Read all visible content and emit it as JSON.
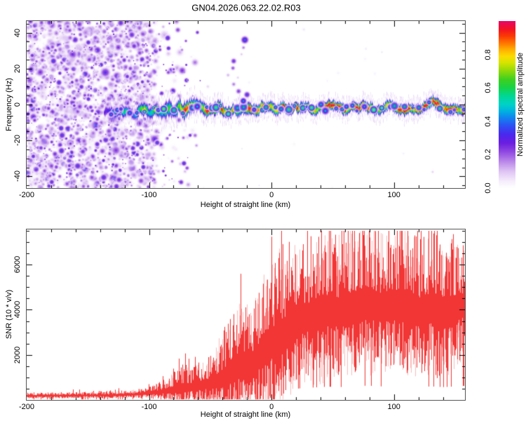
{
  "title": "GN04.2026.063.22.02.R03",
  "chart_data": [
    {
      "type": "heatmap",
      "title": "",
      "xlabel": "Height of straight line (km)",
      "ylabel": "Frequency (Hz)",
      "xlim": [
        -200,
        158
      ],
      "ylim": [
        -46.5,
        46.5
      ],
      "grid": false,
      "xticks": [
        {
          "v": -200,
          "label": "-200"
        },
        {
          "v": -100,
          "label": "-100"
        },
        {
          "v": 0,
          "label": "0"
        },
        {
          "v": 100,
          "label": "100"
        }
      ],
      "xminor_step": 20,
      "yticks": [
        {
          "v": 40,
          "label": "40"
        },
        {
          "v": 20,
          "label": "20"
        },
        {
          "v": 0,
          "label": "0"
        },
        {
          "v": -20,
          "label": "-20"
        },
        {
          "v": -40,
          "label": "-40"
        }
      ],
      "yminor_step": 5,
      "colorbar": {
        "label": "Normalized spectral amplitude",
        "range": [
          0,
          1
        ],
        "ticks": [
          {
            "v": 0.0,
            "label": "0.0"
          },
          {
            "v": 0.2,
            "label": "0.2"
          },
          {
            "v": 0.4,
            "label": "0.4"
          },
          {
            "v": 0.6,
            "label": "0.6"
          },
          {
            "v": 0.8,
            "label": "0.8"
          }
        ],
        "colormap_stops": [
          [
            0.0,
            "#ffffff"
          ],
          [
            0.04,
            "#f6eefc"
          ],
          [
            0.1,
            "#dfc4f4"
          ],
          [
            0.16,
            "#b986ea"
          ],
          [
            0.22,
            "#8f46e2"
          ],
          [
            0.27,
            "#6b1ee0"
          ],
          [
            0.32,
            "#4b28ee"
          ],
          [
            0.37,
            "#2e4ef4"
          ],
          [
            0.42,
            "#1283f0"
          ],
          [
            0.46,
            "#00b2e0"
          ],
          [
            0.5,
            "#00d2c8"
          ],
          [
            0.55,
            "#00d896"
          ],
          [
            0.6,
            "#17d349"
          ],
          [
            0.65,
            "#3fd01f"
          ],
          [
            0.7,
            "#8ed90a"
          ],
          [
            0.75,
            "#d7e400"
          ],
          [
            0.79,
            "#fddb00"
          ],
          [
            0.83,
            "#ffae00"
          ],
          [
            0.87,
            "#ff7300"
          ],
          [
            0.91,
            "#fb3a05"
          ],
          [
            0.95,
            "#f31322"
          ],
          [
            1.0,
            "#e7076b"
          ]
        ]
      },
      "noise_region": {
        "x_start": -200,
        "dense_until": -102,
        "fade_until": -92,
        "sparse_until": -55,
        "samples": 4200,
        "amp_min": 0.07,
        "amp_max": 0.37
      },
      "band_samples": [
        [
          -137,
          -4.0,
          0.32,
          2.2
        ],
        [
          -130,
          -3.2,
          0.48,
          2.2
        ],
        [
          -124,
          -4.5,
          0.5,
          2.3
        ],
        [
          -118,
          -3.0,
          0.55,
          2.4
        ],
        [
          -112,
          -4.8,
          0.58,
          2.4
        ],
        [
          -106,
          -3.2,
          0.62,
          2.5
        ],
        [
          -100,
          -4.0,
          0.68,
          2.5
        ],
        [
          -95,
          -2.5,
          0.72,
          2.7
        ],
        [
          -90,
          -4.5,
          0.76,
          3.0
        ],
        [
          -85,
          -2.0,
          0.8,
          3.3
        ],
        [
          -80,
          -4.0,
          0.82,
          3.3
        ],
        [
          -76,
          -1.5,
          0.85,
          3.1
        ],
        [
          -72,
          -3.8,
          0.86,
          3.0
        ],
        [
          -68,
          -1.8,
          0.85,
          2.8
        ],
        [
          -64,
          -0.5,
          0.87,
          2.7
        ],
        [
          -60,
          0.5,
          0.88,
          2.8
        ],
        [
          -56,
          -1.5,
          0.9,
          2.5
        ],
        [
          -52,
          -3.5,
          0.9,
          2.5
        ],
        [
          -48,
          -2.0,
          0.92,
          2.3
        ],
        [
          -44,
          -1.0,
          0.92,
          2.4
        ],
        [
          -40,
          -2.5,
          0.9,
          2.4
        ],
        [
          -36,
          -4.0,
          0.93,
          2.3
        ],
        [
          -32,
          -2.5,
          0.95,
          2.2
        ],
        [
          -28,
          -3.5,
          0.94,
          2.3
        ],
        [
          -24,
          -2.0,
          0.95,
          2.2
        ],
        [
          -20,
          -3.0,
          0.96,
          2.2
        ],
        [
          -16,
          -4.0,
          0.96,
          2.1
        ],
        [
          -12,
          -2.5,
          0.95,
          2.1
        ],
        [
          -8,
          -1.5,
          0.96,
          2.0
        ],
        [
          -4,
          -2.5,
          0.97,
          2.0
        ],
        [
          0,
          -1.8,
          0.96,
          2.0
        ],
        [
          5,
          -2.5,
          0.97,
          2.0
        ],
        [
          10,
          -1.5,
          0.96,
          2.0
        ],
        [
          15,
          -2.8,
          0.97,
          2.0
        ],
        [
          20,
          -2.0,
          0.97,
          1.9
        ],
        [
          25,
          -3.0,
          0.96,
          2.0
        ],
        [
          30,
          -1.5,
          0.97,
          1.9
        ],
        [
          35,
          -2.5,
          0.97,
          2.0
        ],
        [
          40,
          -1.2,
          0.98,
          2.0
        ],
        [
          45,
          -2.2,
          0.97,
          1.9
        ],
        [
          50,
          -1.0,
          0.97,
          2.0
        ],
        [
          55,
          -2.5,
          0.96,
          1.9
        ],
        [
          60,
          -3.0,
          0.97,
          2.0
        ],
        [
          65,
          -1.5,
          0.97,
          1.9
        ],
        [
          70,
          -2.5,
          0.98,
          2.0
        ],
        [
          75,
          -1.0,
          0.97,
          1.9
        ],
        [
          80,
          -2.0,
          0.97,
          2.0
        ],
        [
          85,
          -3.0,
          0.96,
          2.0
        ],
        [
          90,
          -1.5,
          0.97,
          1.9
        ],
        [
          95,
          -0.5,
          0.98,
          2.0
        ],
        [
          100,
          -2.5,
          0.97,
          1.9
        ],
        [
          105,
          -3.2,
          0.96,
          2.0
        ],
        [
          110,
          -2.0,
          0.97,
          2.0
        ],
        [
          115,
          -1.0,
          0.98,
          1.9
        ],
        [
          120,
          -2.8,
          0.97,
          2.0
        ],
        [
          125,
          -1.5,
          0.97,
          1.9
        ],
        [
          130,
          0.5,
          0.98,
          2.0
        ],
        [
          133,
          2.0,
          0.97,
          2.0
        ],
        [
          136,
          0.0,
          0.97,
          1.9
        ],
        [
          140,
          -2.0,
          0.97,
          1.9
        ],
        [
          145,
          -3.0,
          0.96,
          2.0
        ],
        [
          150,
          -2.0,
          0.97,
          1.9
        ],
        [
          155,
          -2.8,
          0.97,
          2.0
        ],
        [
          158,
          -2.0,
          0.97,
          1.9
        ]
      ],
      "band_bumps": {
        "start_km": -126,
        "spacing_min_km": 2.5,
        "spacing_max_km": 9,
        "amp_min": 0.45,
        "amp_max": 0.75
      },
      "seed_blobs": [
        [
          -128,
          -4.0,
          3.0,
          0.62
        ],
        [
          -126,
          -3.0,
          2.5,
          0.5
        ],
        [
          -131,
          -5.5,
          2.5,
          0.45
        ],
        [
          -123,
          -2.5,
          2.2,
          0.4
        ]
      ],
      "plume_blobs": [
        [
          -21.8,
          36.0,
          3.5,
          0.4
        ],
        [
          -22.9,
          31.7,
          2.0,
          0.2
        ],
        [
          -30.9,
          24.2,
          2.8,
          0.3
        ],
        [
          -31.5,
          20.3,
          2.3,
          0.24
        ],
        [
          -35.5,
          16.4,
          2.0,
          0.16
        ],
        [
          -30.9,
          11.3,
          2.3,
          0.2
        ],
        [
          -26.9,
          7.4,
          2.8,
          0.26
        ],
        [
          -20.0,
          5.5,
          3.0,
          0.34
        ],
        [
          -23.0,
          2.0,
          3.0,
          0.45
        ],
        [
          -24.5,
          28.0,
          1.6,
          0.14
        ],
        [
          -27.5,
          15.0,
          1.6,
          0.13
        ]
      ],
      "scatter_blobs": [
        [
          -62.4,
          -17.2,
          2.5,
          0.22
        ],
        [
          -61.3,
          -22.8,
          2.0,
          0.18
        ],
        [
          -76.0,
          -30.0,
          2.0,
          0.12
        ],
        [
          -52.0,
          10.0,
          2.0,
          0.12
        ]
      ],
      "sprinkle_count": 18
    },
    {
      "type": "line",
      "title": "",
      "xlabel": "Height of straight line (km)",
      "ylabel": "SNR (10 * v/v)",
      "xlim": [
        -200,
        158
      ],
      "ylim": [
        0,
        7560
      ],
      "grid": false,
      "xticks": [
        {
          "v": -200,
          "label": "-200"
        },
        {
          "v": -100,
          "label": "-100"
        },
        {
          "v": 0,
          "label": "0"
        },
        {
          "v": 100,
          "label": "100"
        }
      ],
      "xminor_step": 20,
      "yticks": [
        {
          "v": 2000,
          "label": "2000"
        },
        {
          "v": 4000,
          "label": "4000"
        },
        {
          "v": 6000,
          "label": "6000"
        }
      ],
      "yminor_step": 500,
      "line_color": "#f23535",
      "series": [
        {
          "name": "SNR",
          "envelope_km_mean_spread": [
            [
              -200,
              180,
              120
            ],
            [
              -180,
              185,
              120
            ],
            [
              -160,
              190,
              130
            ],
            [
              -145,
              200,
              140
            ],
            [
              -130,
              210,
              150
            ],
            [
              -120,
              220,
              160
            ],
            [
              -112,
              245,
              185
            ],
            [
              -105,
              275,
              215
            ],
            [
              -100,
              300,
              250
            ],
            [
              -95,
              330,
              300
            ],
            [
              -90,
              360,
              380
            ],
            [
              -85,
              400,
              460
            ],
            [
              -80,
              450,
              620
            ],
            [
              -75,
              500,
              900
            ],
            [
              -70,
              520,
              800
            ],
            [
              -65,
              550,
              720
            ],
            [
              -60,
              610,
              820
            ],
            [
              -55,
              660,
              920
            ],
            [
              -50,
              710,
              1050
            ],
            [
              -45,
              810,
              1350
            ],
            [
              -40,
              920,
              1750
            ],
            [
              -35,
              1100,
              2000
            ],
            [
              -30,
              1300,
              2250
            ],
            [
              -25,
              1500,
              2500
            ],
            [
              -20,
              1500,
              2300
            ],
            [
              -15,
              1620,
              2250
            ],
            [
              -10,
              1900,
              2600
            ],
            [
              -5,
              2200,
              2850
            ],
            [
              0,
              2450,
              3050
            ],
            [
              5,
              2600,
              3250
            ],
            [
              10,
              2850,
              3250
            ],
            [
              15,
              3050,
              3000
            ],
            [
              20,
              3300,
              2850
            ],
            [
              25,
              3500,
              2700
            ],
            [
              30,
              3600,
              2800
            ],
            [
              35,
              3700,
              2950
            ],
            [
              40,
              3800,
              3050
            ],
            [
              45,
              3900,
              2950
            ],
            [
              50,
              3900,
              2800
            ],
            [
              55,
              3800,
              2950
            ],
            [
              60,
              3900,
              3100
            ],
            [
              65,
              4000,
              3050
            ],
            [
              70,
              4100,
              3000
            ],
            [
              75,
              4200,
              3100
            ],
            [
              80,
              4200,
              3250
            ],
            [
              85,
              4100,
              2950
            ],
            [
              90,
              4000,
              2700
            ],
            [
              95,
              4100,
              2800
            ],
            [
              100,
              4200,
              2850
            ],
            [
              105,
              4100,
              2950
            ],
            [
              110,
              4000,
              3100
            ],
            [
              115,
              3900,
              2800
            ],
            [
              120,
              3800,
              2700
            ],
            [
              125,
              3900,
              2900
            ],
            [
              130,
              4000,
              3000
            ],
            [
              135,
              3900,
              3100
            ],
            [
              140,
              3800,
              3000
            ],
            [
              145,
              3900,
              2850
            ],
            [
              150,
              4000,
              2600
            ],
            [
              155,
              4100,
              2450
            ],
            [
              158,
              4200,
              2250
            ]
          ]
        }
      ]
    }
  ]
}
